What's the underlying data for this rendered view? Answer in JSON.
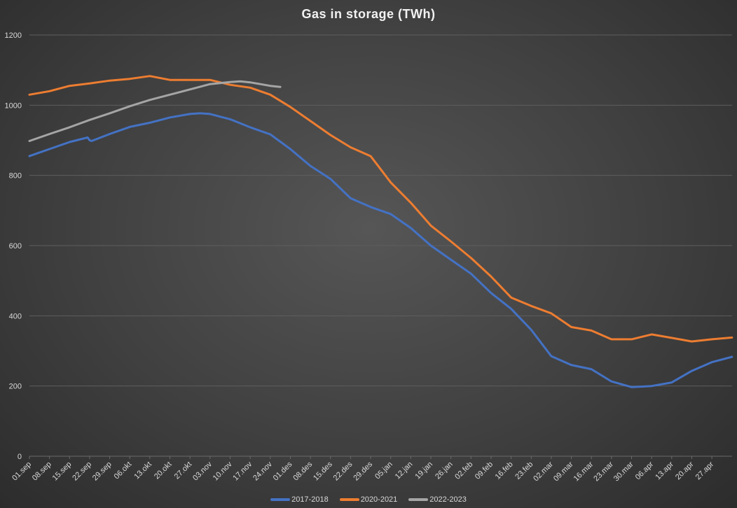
{
  "chart_data": {
    "type": "line",
    "title": "Gas in storage (TWh)",
    "xlabel": "",
    "ylabel": "",
    "ylim": [
      0,
      1200
    ],
    "yticks": [
      0,
      200,
      400,
      600,
      800,
      1000,
      1200
    ],
    "grid": true,
    "legend_position": "bottom",
    "categories": [
      "01.sep",
      "08.sep",
      "15.sep",
      "22.sep",
      "29.sep",
      "06.okt",
      "13.okt",
      "20.okt",
      "27.okt",
      "03.nov",
      "10.nov",
      "17.nov",
      "24.nov",
      "01.des",
      "08.des",
      "15.des",
      "22.des",
      "29.des",
      "05.jan",
      "12.jan",
      "19.jan",
      "26.jan",
      "02.feb",
      "09.feb",
      "16.feb",
      "23.feb",
      "02.mar",
      "09.mar",
      "16.mar",
      "23.mar",
      "30.mar",
      "06.apr",
      "13.apr",
      "20.apr",
      "27.apr"
    ],
    "series": [
      {
        "name": "2017-2018",
        "color": "#4472c4",
        "x": [
          0,
          1,
          2,
          2.9,
          3,
          3.1,
          4,
          5,
          6,
          7,
          8,
          8.5,
          9,
          10,
          11,
          12,
          13,
          14,
          15,
          16,
          17,
          18,
          19,
          20,
          21,
          22,
          23,
          24,
          25,
          26,
          27,
          28,
          29,
          30,
          31,
          32,
          33,
          34,
          35
        ],
        "values": [
          855,
          875,
          895,
          908,
          900,
          898,
          918,
          938,
          950,
          965,
          975,
          977,
          975,
          960,
          937,
          917,
          875,
          827,
          790,
          735,
          710,
          690,
          650,
          600,
          560,
          520,
          465,
          420,
          360,
          285,
          260,
          248,
          213,
          197,
          200,
          210,
          243,
          268,
          283
        ]
      },
      {
        "name": "2020-2021",
        "color": "#ed7d31",
        "x": [
          0,
          1,
          2,
          3,
          4,
          5,
          6,
          7,
          8,
          9,
          10,
          11,
          12,
          13,
          14,
          15,
          16,
          17,
          17.4,
          18,
          19,
          20,
          21,
          22,
          23,
          24,
          25,
          26,
          27,
          28,
          29,
          30,
          31,
          32,
          33,
          34,
          35
        ],
        "values": [
          1030,
          1040,
          1055,
          1062,
          1070,
          1075,
          1083,
          1072,
          1072,
          1072,
          1058,
          1050,
          1030,
          995,
          955,
          915,
          880,
          855,
          825,
          780,
          722,
          657,
          612,
          565,
          512,
          452,
          428,
          407,
          368,
          358,
          333,
          333,
          347,
          337,
          327,
          333,
          338
        ]
      },
      {
        "name": "2022-2023",
        "color": "#a5a5a5",
        "x": [
          0,
          1,
          2,
          3,
          4,
          5,
          6,
          7,
          8,
          9,
          10,
          10.5,
          11,
          12,
          12.5
        ],
        "values": [
          898,
          918,
          937,
          958,
          977,
          997,
          1015,
          1030,
          1045,
          1060,
          1066,
          1068,
          1065,
          1055,
          1052
        ]
      }
    ]
  }
}
